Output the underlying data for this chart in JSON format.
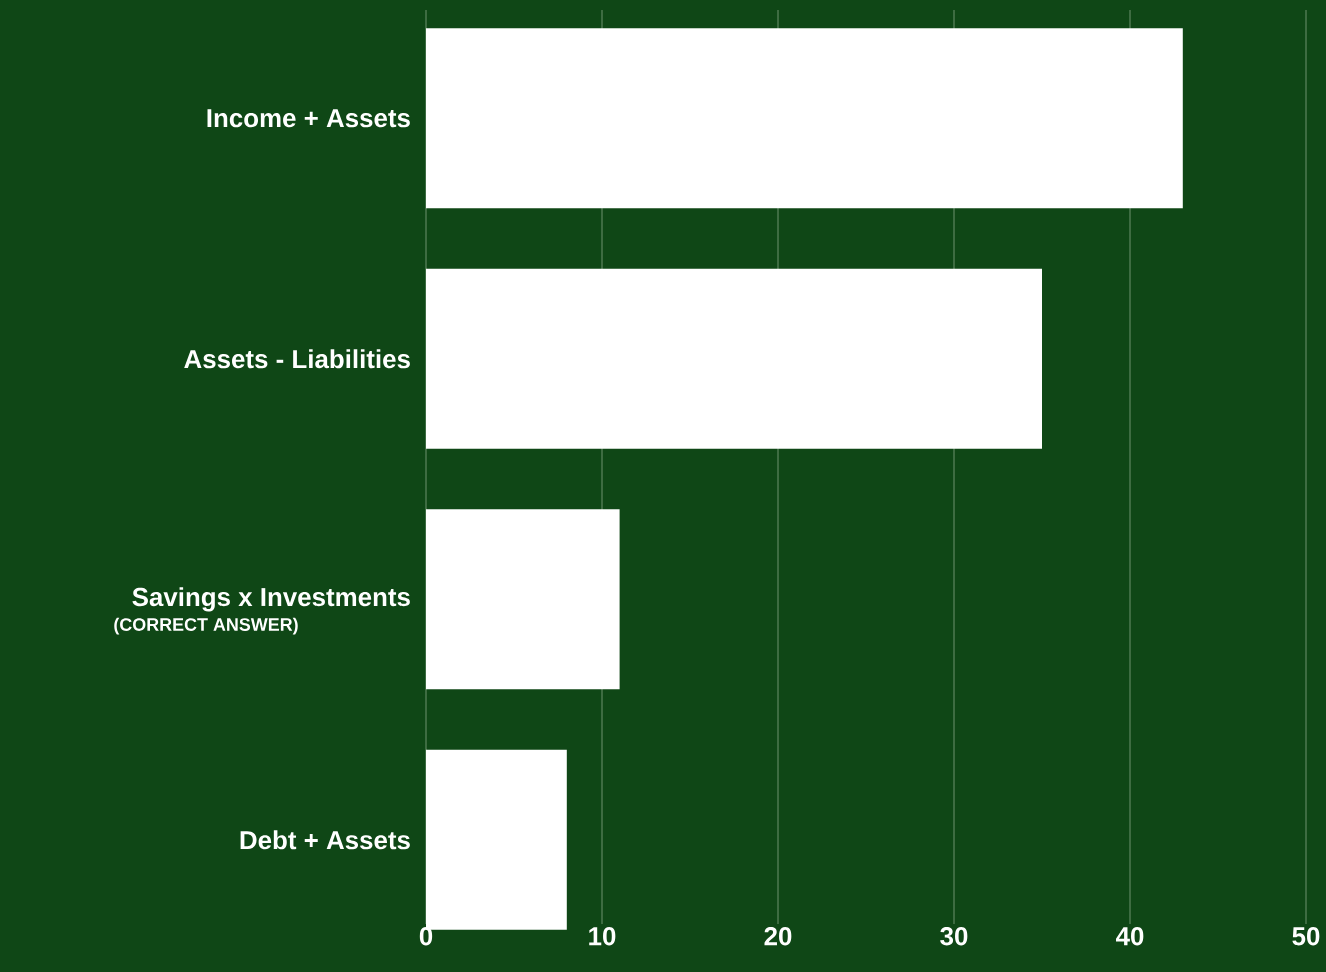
{
  "chart_data": {
    "type": "bar",
    "orientation": "horizontal",
    "categories": [
      "Income + Assets",
      "Assets - Liabilities",
      "Savings x Investments",
      "Debt + Assets"
    ],
    "values": [
      43,
      35,
      11,
      8
    ],
    "color": "#ffffff",
    "xlim": [
      0,
      50
    ],
    "xticks": [
      0,
      10,
      20,
      30,
      40,
      50
    ],
    "grid": "x",
    "annotations": [
      "(CORRECT ANSWER)"
    ]
  }
}
